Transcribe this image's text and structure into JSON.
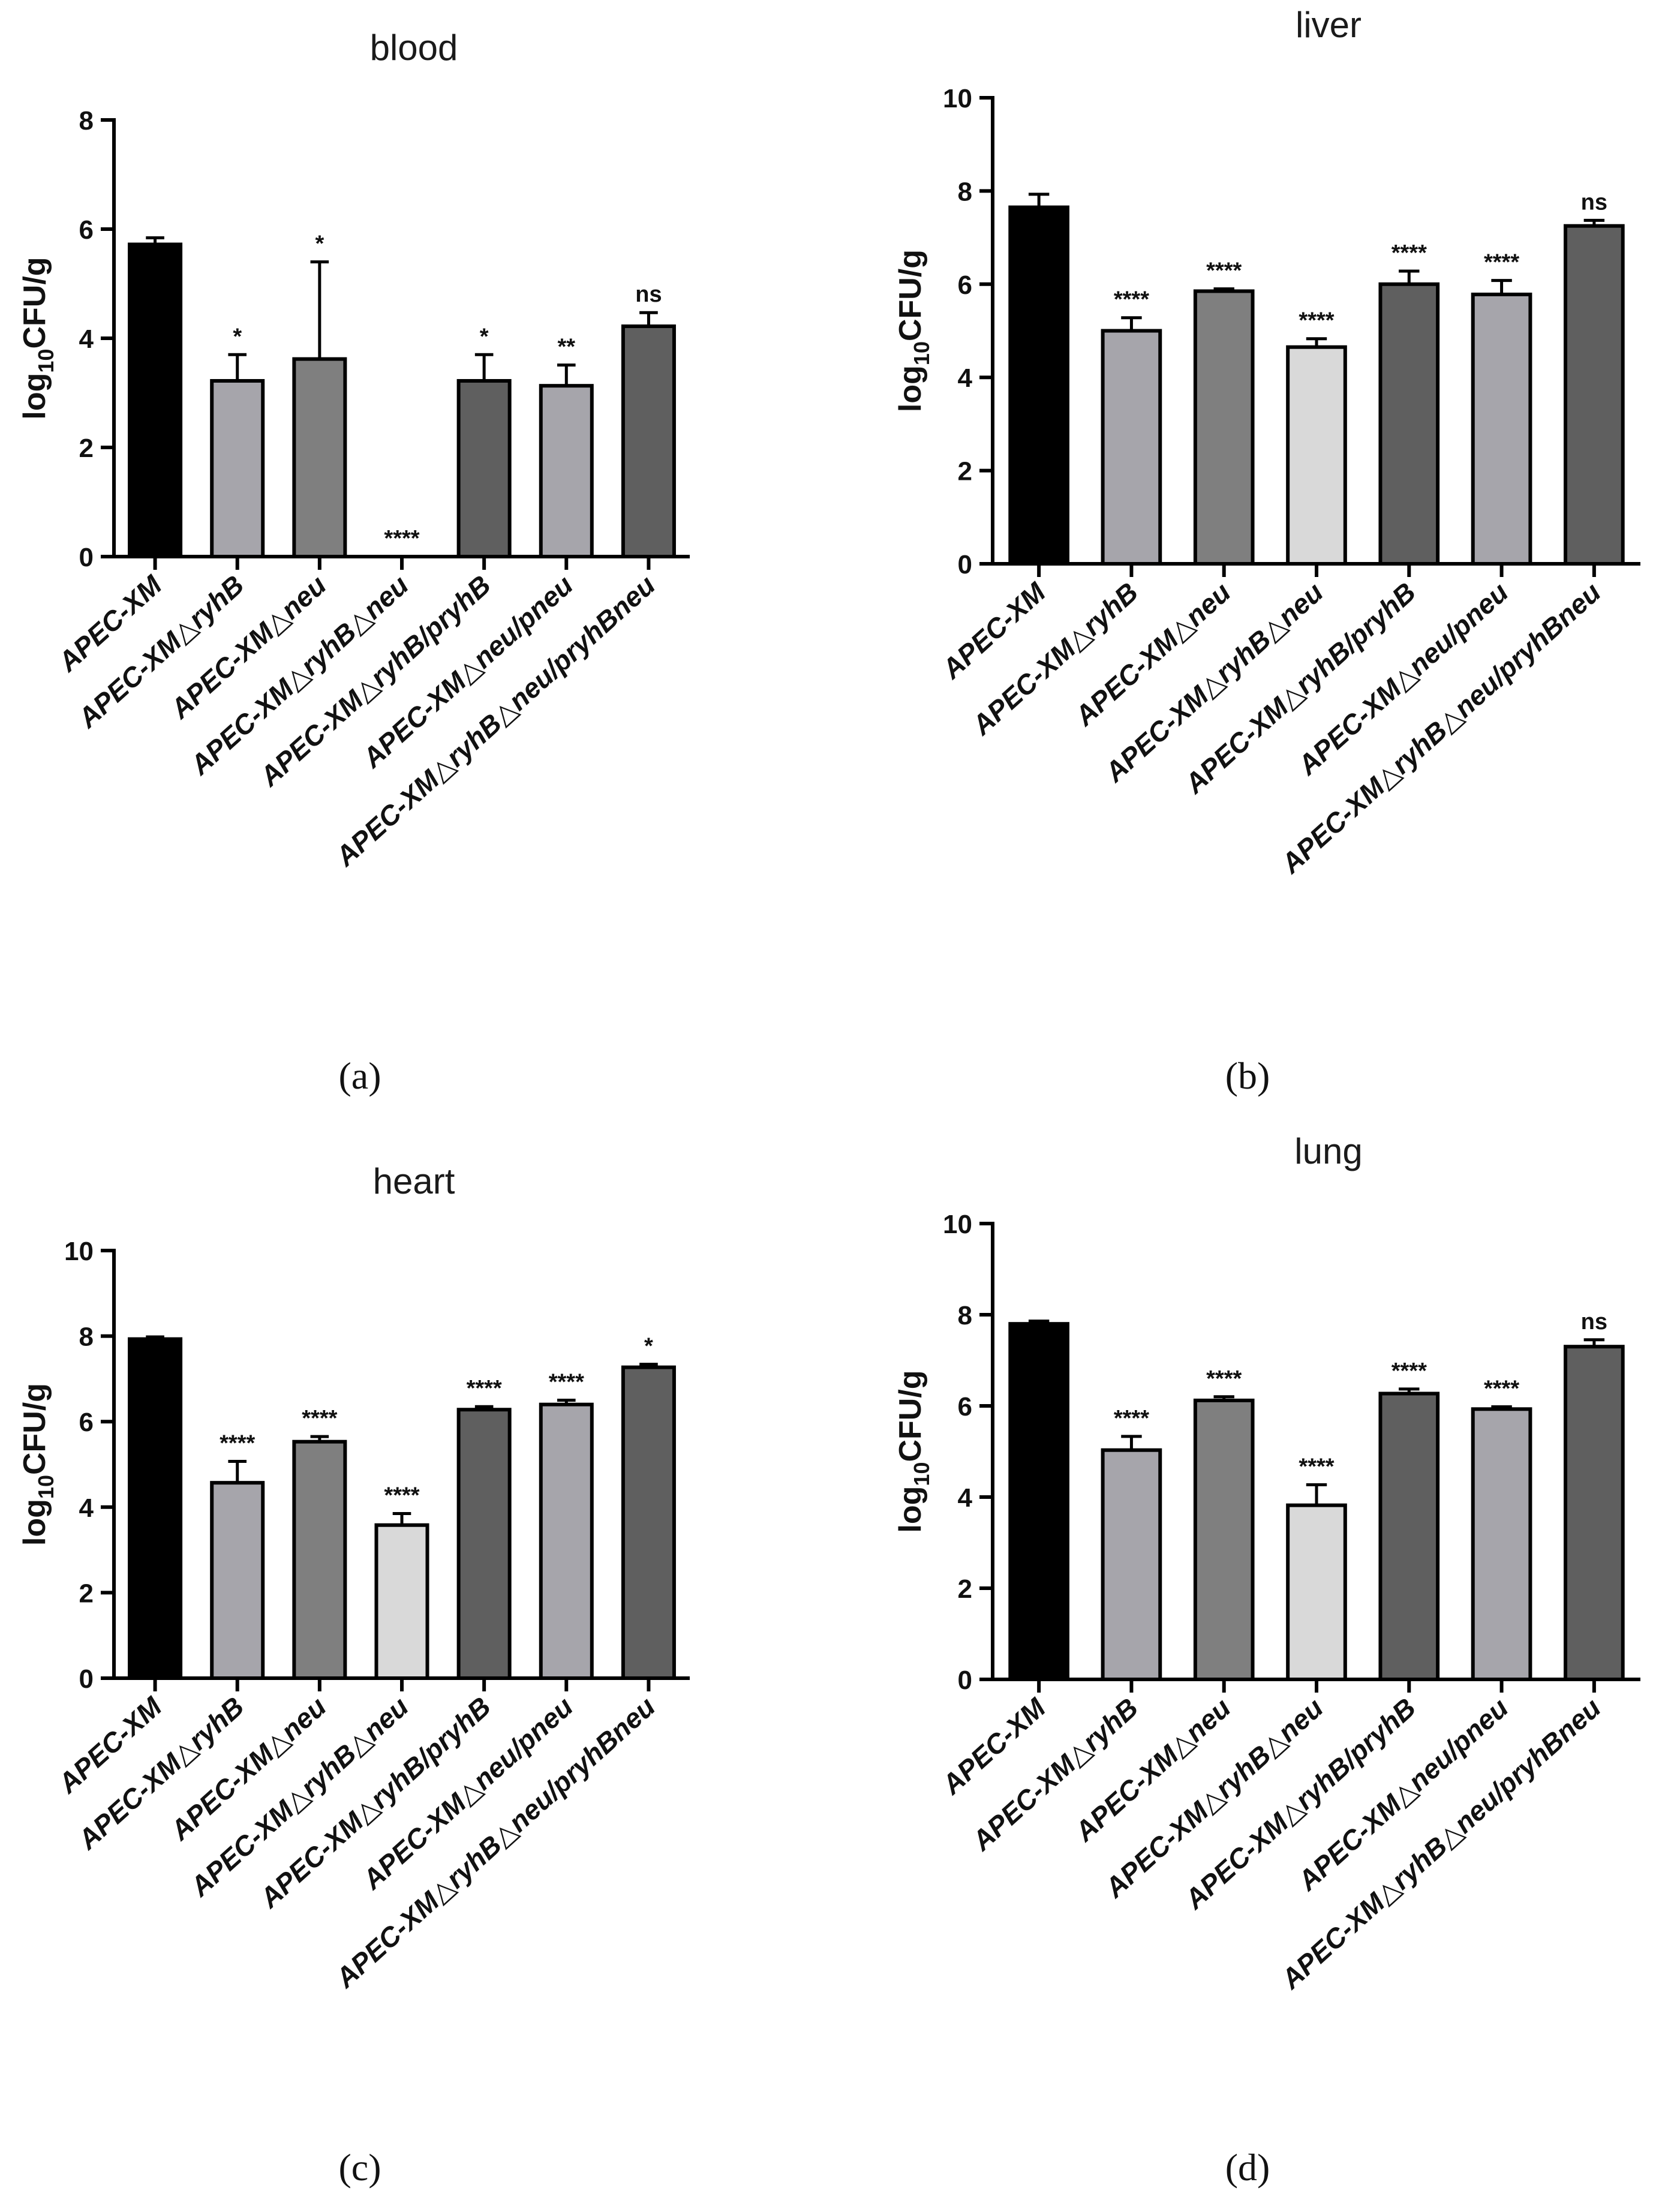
{
  "figure": {
    "y_axis_label": "log10CFU/g",
    "y_axis_label_base": "log",
    "y_axis_label_sub": "10",
    "y_axis_label_rest": "CFU/g"
  },
  "chart_data": [
    {
      "panel": "a",
      "panel_label": "(a)",
      "type": "bar",
      "title": "blood",
      "ylabel": "log10CFU/g",
      "ylim": [
        0,
        8
      ],
      "yticks": [
        0,
        2,
        4,
        6,
        8
      ],
      "categories": [
        "APEC-XM",
        "APEC-XM△ryhB",
        "APEC-XM△neu",
        "APEC-XM△ryhB△neu",
        "APEC-XM△ryhB/pryhB",
        "APEC-XM△neu/pneu",
        "APEC-XM△ryhB△neu/pryhBneu"
      ],
      "values": [
        5.72,
        3.22,
        3.62,
        0,
        3.22,
        3.13,
        4.22
      ],
      "errors": [
        0.12,
        0.48,
        1.78,
        0,
        0.48,
        0.38,
        0.25
      ],
      "significance": [
        "",
        "*",
        "*",
        "****",
        "*",
        "**",
        "ns"
      ],
      "colors": [
        "#000000",
        "#a6a5ab",
        "#7f7f7f",
        "#d9d9d9",
        "#5f5f5f",
        "#a6a5ab",
        "#5f5f5f"
      ]
    },
    {
      "panel": "b",
      "panel_label": "(b)",
      "type": "bar",
      "title": "liver",
      "ylabel": "log10CFU/g",
      "ylim": [
        0,
        10
      ],
      "yticks": [
        0,
        2,
        4,
        6,
        8,
        10
      ],
      "categories": [
        "APEC-XM",
        "APEC-XM△ryhB",
        "APEC-XM△neu",
        "APEC-XM△ryhB△neu",
        "APEC-XM△ryhB/pryhB",
        "APEC-XM△neu/pneu",
        "APEC-XM△ryhB△neu/pryhBneu"
      ],
      "values": [
        7.65,
        5.0,
        5.85,
        4.65,
        6.0,
        5.78,
        7.25
      ],
      "errors": [
        0.28,
        0.28,
        0.05,
        0.18,
        0.28,
        0.3,
        0.12
      ],
      "significance": [
        "",
        "****",
        "****",
        "****",
        "****",
        "****",
        "ns"
      ],
      "colors": [
        "#000000",
        "#a6a5ab",
        "#7f7f7f",
        "#d9d9d9",
        "#5f5f5f",
        "#a6a5ab",
        "#5f5f5f"
      ]
    },
    {
      "panel": "c",
      "panel_label": "(c)",
      "type": "bar",
      "title": "heart",
      "ylabel": "log10CFU/g",
      "ylim": [
        0,
        10
      ],
      "yticks": [
        0,
        2,
        4,
        6,
        8,
        10
      ],
      "categories": [
        "APEC-XM",
        "APEC-XM△ryhB",
        "APEC-XM△neu",
        "APEC-XM△ryhB△neu",
        "APEC-XM△ryhB/pryhB",
        "APEC-XM△neu/pneu",
        "APEC-XM△ryhB△neu/pryhBneu"
      ],
      "values": [
        7.93,
        4.57,
        5.53,
        3.58,
        6.28,
        6.4,
        7.27
      ],
      "errors": [
        0.05,
        0.5,
        0.12,
        0.27,
        0.07,
        0.1,
        0.07
      ],
      "significance": [
        "",
        "****",
        "****",
        "****",
        "****",
        "****",
        "*"
      ],
      "colors": [
        "#000000",
        "#a6a5ab",
        "#7f7f7f",
        "#d9d9d9",
        "#5f5f5f",
        "#a6a5ab",
        "#5f5f5f"
      ]
    },
    {
      "panel": "d",
      "panel_label": "(d)",
      "type": "bar",
      "title": "lung",
      "ylabel": "log10CFU/g",
      "ylim": [
        0,
        10
      ],
      "yticks": [
        0,
        2,
        4,
        6,
        8,
        10
      ],
      "categories": [
        "APEC-XM",
        "APEC-XM△ryhB",
        "APEC-XM△neu",
        "APEC-XM△ryhB△neu",
        "APEC-XM△ryhB/pryhB",
        "APEC-XM△neu/pneu",
        "APEC-XM△ryhB△neu/pryhBneu"
      ],
      "values": [
        7.8,
        5.03,
        6.12,
        3.82,
        6.27,
        5.93,
        7.3
      ],
      "errors": [
        0.06,
        0.3,
        0.08,
        0.45,
        0.1,
        0.05,
        0.15
      ],
      "significance": [
        "",
        "****",
        "****",
        "****",
        "****",
        "****",
        "ns"
      ],
      "colors": [
        "#000000",
        "#a6a5ab",
        "#7f7f7f",
        "#d9d9d9",
        "#5f5f5f",
        "#a6a5ab",
        "#5f5f5f"
      ]
    }
  ]
}
